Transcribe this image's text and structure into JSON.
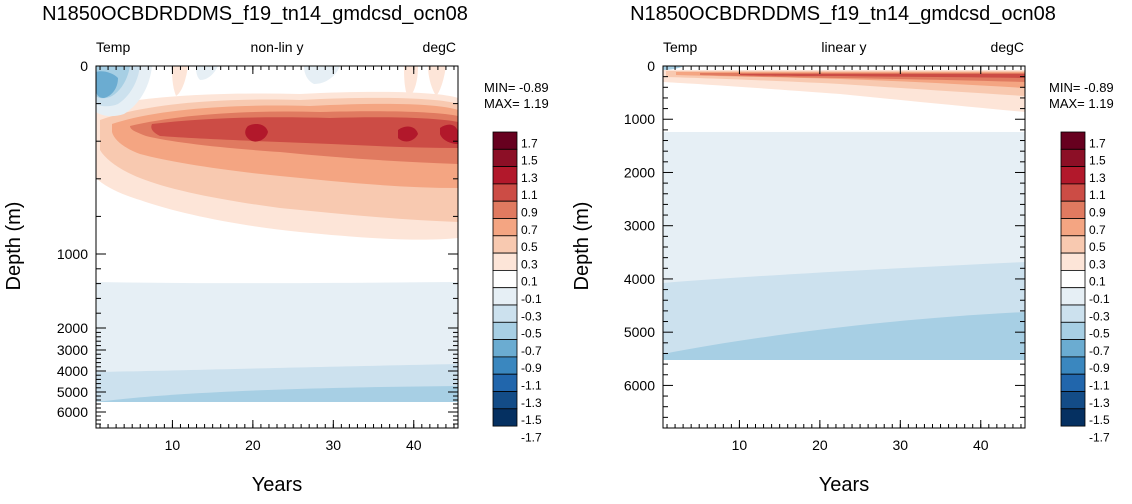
{
  "palette": {
    "colors": [
      "#053061",
      "#134c87",
      "#2166ac",
      "#3a87bf",
      "#6bacd1",
      "#a7cfe4",
      "#cce1ee",
      "#e6eff5",
      "#ffffff",
      "#fde5d8",
      "#f8c9b0",
      "#f4a582",
      "#e07a60",
      "#cc4c45",
      "#b2182b",
      "#8c0f26",
      "#67001f"
    ],
    "labels": [
      "1.7",
      "1.5",
      "1.3",
      "1.1",
      "0.9",
      "0.7",
      "0.5",
      "0.3",
      "0.1",
      "-0.1",
      "-0.3",
      "-0.5",
      "-0.7",
      "-0.9",
      "-1.1",
      "-1.3",
      "-1.5",
      "-1.7"
    ]
  },
  "chart_data": [
    {
      "type": "contour",
      "title": "N1850OCBDRDDMS_f19_tn14_gmdcsd_ocn08",
      "subtitle_left": "Temp",
      "subtitle_center": "non-lin y",
      "subtitle_right": "degC",
      "xlabel": "Years",
      "ylabel": "Depth (m)",
      "xlim": [
        0.5,
        45.5
      ],
      "x_ticks": [
        "10",
        "20",
        "30",
        "40"
      ],
      "y_scale": "non-linear",
      "y_ticks": [
        "0",
        "1000",
        "2000",
        "3000",
        "4000",
        "5000",
        "6000"
      ],
      "min_label": "MIN= -0.89",
      "max_label": "MAX=  1.19",
      "min": -0.89,
      "max": 1.19
    },
    {
      "type": "contour",
      "title": "N1850OCBDRDDMS_f19_tn14_gmdcsd_ocn08",
      "subtitle_left": "Temp",
      "subtitle_center": "linear y",
      "subtitle_right": "degC",
      "xlabel": "Years",
      "ylabel": "Depth (m)",
      "xlim": [
        0.5,
        45.5
      ],
      "x_ticks": [
        "10",
        "20",
        "30",
        "40"
      ],
      "y_scale": "linear",
      "y_ticks": [
        "0",
        "1000",
        "2000",
        "3000",
        "4000",
        "5000",
        "6000"
      ],
      "min_label": "MIN= -0.89",
      "max_label": "MAX=  1.19",
      "min": -0.89,
      "max": 1.19
    }
  ]
}
